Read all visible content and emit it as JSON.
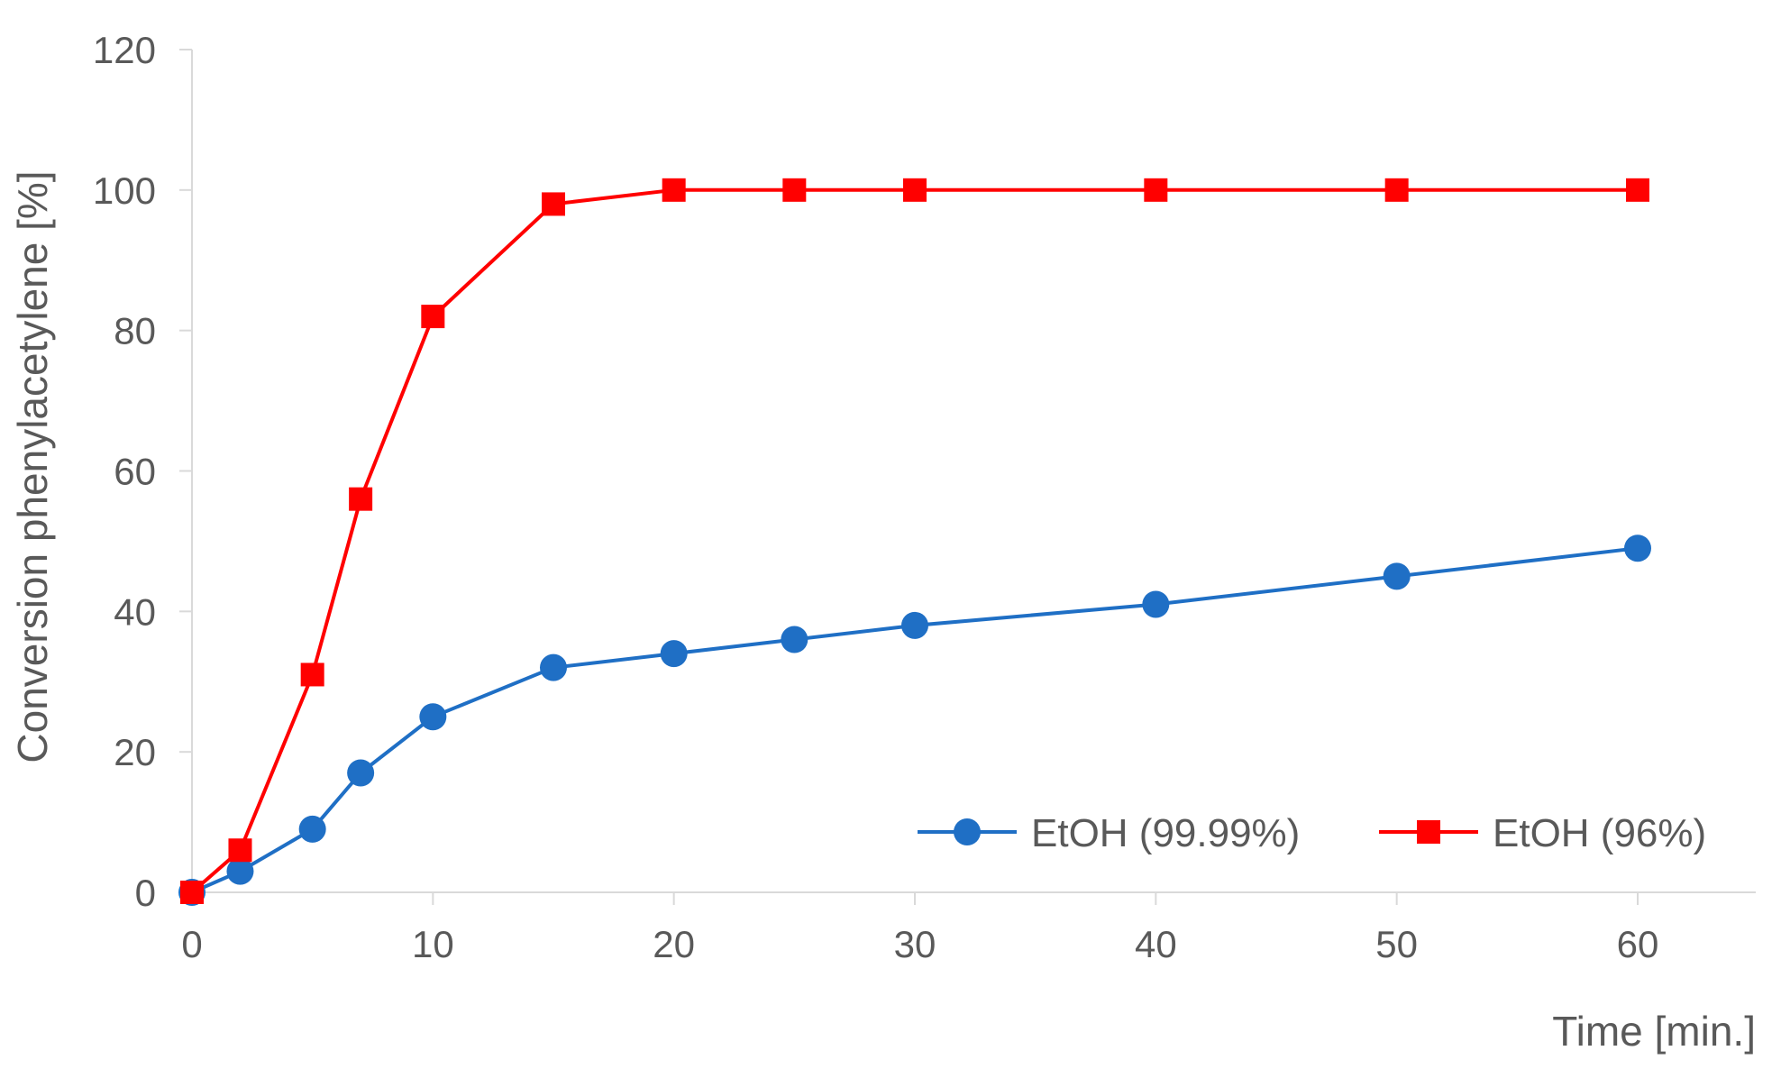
{
  "chart_data": {
    "type": "line",
    "title": "",
    "xlabel": "Time [min.]",
    "ylabel": "Conversion phenylacetylene [%]",
    "xlim": [
      0,
      65
    ],
    "ylim": [
      0,
      120
    ],
    "xticks": [
      0,
      10,
      20,
      30,
      40,
      50,
      60
    ],
    "yticks": [
      0,
      20,
      40,
      60,
      80,
      100,
      120
    ],
    "grid": false,
    "legend_position": "bottom-right",
    "series": [
      {
        "name": "EtOH (99.99%)",
        "color": "#1f6fc5",
        "marker": "circle",
        "x": [
          0,
          2,
          5,
          7,
          10,
          15,
          20,
          25,
          30,
          40,
          50,
          60
        ],
        "y": [
          0,
          3,
          9,
          17,
          25,
          32,
          34,
          36,
          38,
          41,
          45,
          49
        ]
      },
      {
        "name": "EtOH (96%)",
        "color": "#ff0000",
        "marker": "square",
        "x": [
          0,
          2,
          5,
          7,
          10,
          15,
          20,
          25,
          30,
          40,
          50,
          60
        ],
        "y": [
          0,
          6,
          31,
          56,
          82,
          98,
          100,
          100,
          100,
          100,
          100,
          100
        ]
      }
    ]
  }
}
